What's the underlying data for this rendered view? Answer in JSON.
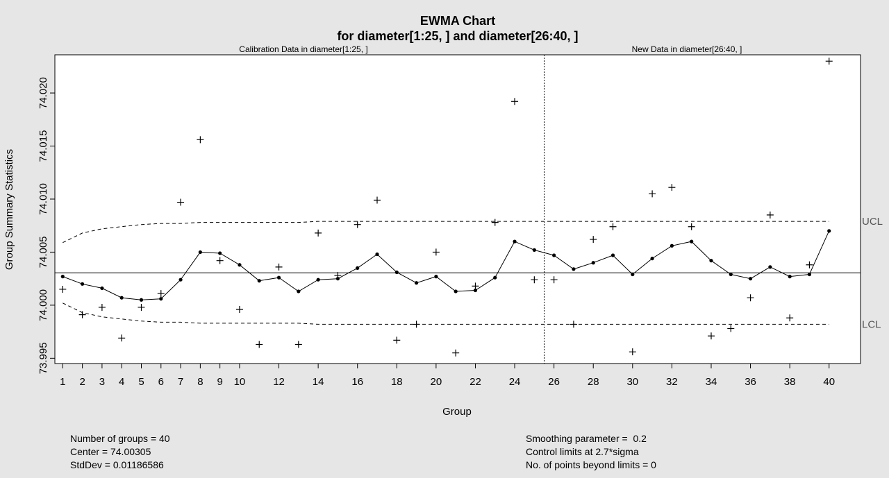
{
  "chart_data": {
    "type": "line",
    "title": "EWMA Chart",
    "subtitle": "for diameter[1:25, ] and diameter[26:40, ]",
    "calibration_label": "Calibration Data in diameter[1:25, ]",
    "new_data_label": "New Data in diameter[26:40, ]",
    "xlabel": "Group",
    "ylabel": "Group Summary Statistics",
    "xlim": [
      0.6,
      41.6
    ],
    "ylim": [
      73.9945,
      74.0236
    ],
    "x_ticks": [
      1,
      2,
      3,
      4,
      5,
      6,
      7,
      8,
      9,
      10,
      12,
      14,
      16,
      18,
      20,
      22,
      24,
      26,
      28,
      30,
      32,
      34,
      36,
      38,
      40
    ],
    "y_ticks": [
      "73.995",
      "74.000",
      "74.005",
      "74.010",
      "74.015",
      "74.020"
    ],
    "y_tick_values": [
      73.995,
      74.0,
      74.005,
      74.01,
      74.015,
      74.02
    ],
    "center": 74.00305,
    "split_after": 25,
    "ucl_label": "UCL",
    "lcl_label": "LCL",
    "series": [
      {
        "role": "group-statistics",
        "marker": "cross",
        "values": [
          74.0015,
          73.9991,
          73.9998,
          73.9969,
          73.9998,
          74.0011,
          74.0097,
          74.0156,
          74.0042,
          73.9996,
          73.9963,
          74.0036,
          73.9963,
          74.0068,
          74.0028,
          74.0076,
          74.0099,
          73.9967,
          73.9982,
          74.005,
          73.9955,
          74.0018,
          74.0078,
          74.0192,
          74.0024,
          74.0024,
          73.9982,
          74.0062,
          74.0074,
          73.9956,
          74.0105,
          74.0111,
          74.0074,
          73.9971,
          73.9978,
          74.0007,
          74.0085,
          73.9988,
          74.0038,
          74.023
        ]
      },
      {
        "role": "ewma",
        "marker": "dot",
        "values": [
          74.0027,
          74.002,
          74.0016,
          74.0007,
          74.0005,
          74.0006,
          74.0024,
          74.005,
          74.0049,
          74.0038,
          74.0023,
          74.0026,
          74.0013,
          74.0024,
          74.0025,
          74.0035,
          74.0048,
          74.0031,
          74.0021,
          74.0027,
          74.0013,
          74.0014,
          74.0026,
          74.006,
          74.0052,
          74.0047,
          74.0034,
          74.004,
          74.0047,
          74.0029,
          74.0044,
          74.0056,
          74.006,
          74.0042,
          74.0029,
          74.0025,
          74.0036,
          74.0027,
          74.0029,
          74.007
        ]
      }
    ],
    "ucl": [
      74.0059,
      74.0068,
      74.0072,
      74.0074,
      74.0076,
      74.0077,
      74.0077,
      74.0078,
      74.0078,
      74.0078,
      74.0078,
      74.0078,
      74.0078,
      74.0079,
      74.0079,
      74.0079,
      74.0079,
      74.0079,
      74.0079,
      74.0079,
      74.0079,
      74.0079,
      74.0079,
      74.0079,
      74.0079,
      74.0079,
      74.0079,
      74.0079,
      74.0079,
      74.0079,
      74.0079,
      74.0079,
      74.0079,
      74.0079,
      74.0079,
      74.0079,
      74.0079,
      74.0079,
      74.0079,
      74.0079
    ],
    "lcl": [
      74.0002,
      73.9993,
      73.9989,
      73.9987,
      73.9985,
      73.9984,
      73.9984,
      73.9983,
      73.9983,
      73.9983,
      73.9983,
      73.9983,
      73.9983,
      73.9982,
      73.9982,
      73.9982,
      73.9982,
      73.9982,
      73.9982,
      73.9982,
      73.9982,
      73.9982,
      73.9982,
      73.9982,
      73.9982,
      73.9982,
      73.9982,
      73.9982,
      73.9982,
      73.9982,
      73.9982,
      73.9982,
      73.9982,
      73.9982,
      73.9982,
      73.9982,
      73.9982,
      73.9982,
      73.9982,
      73.9982
    ],
    "grid": false
  },
  "stats": {
    "left": [
      "Number of groups = 40",
      "Center = 74.00305",
      "StdDev = 0.01186586"
    ],
    "right": [
      "Smoothing parameter =  0.2",
      "Control limits at 2.7*sigma",
      "No. of points beyond limits = 0"
    ]
  }
}
